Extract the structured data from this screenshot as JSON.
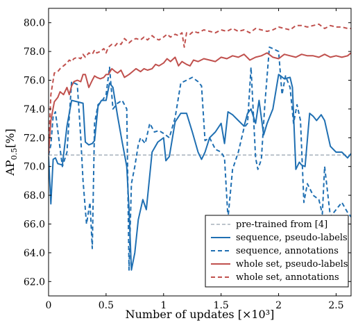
{
  "chart_data": {
    "type": "line",
    "title": "",
    "xlabel": "Number of updates [×10³]",
    "ylabel_main": "AP",
    "ylabel_sub": "0.5",
    "ylabel_unit": "[%]",
    "xlim": [
      0,
      2.63
    ],
    "ylim": [
      61.0,
      81.0
    ],
    "xticks": [
      0,
      0.5,
      1,
      1.5,
      2,
      2.5
    ],
    "xtick_labels": [
      "0",
      "0.5",
      "1",
      "1.5",
      "2",
      "2.5"
    ],
    "yticks": [
      62,
      64,
      66,
      68,
      70,
      72,
      74,
      76,
      78,
      80
    ],
    "ytick_labels": [
      "62.0",
      "64.0",
      "66.0",
      "68.0",
      "70.0",
      "72.0",
      "74.0",
      "76.0",
      "78.0",
      "80.0"
    ],
    "grid": false,
    "legend_position": "bottom-right",
    "series": [
      {
        "name": "pre-trained from [4]",
        "color": "#7a8a9a",
        "dash": "dashed",
        "x": [
          0,
          2.63
        ],
        "y": [
          70.8,
          70.8
        ]
      },
      {
        "name": "sequence, pseudo-labels",
        "color": "#1f6fb2",
        "dash": "solid",
        "x": [
          0,
          0.02,
          0.04,
          0.06,
          0.08,
          0.12,
          0.16,
          0.2,
          0.25,
          0.3,
          0.32,
          0.35,
          0.38,
          0.4,
          0.43,
          0.46,
          0.5,
          0.53,
          0.56,
          0.6,
          0.64,
          0.68,
          0.7,
          0.72,
          0.75,
          0.78,
          0.8,
          0.82,
          0.85,
          0.9,
          0.95,
          1.0,
          1.02,
          1.05,
          1.1,
          1.15,
          1.2,
          1.25,
          1.3,
          1.33,
          1.36,
          1.4,
          1.45,
          1.5,
          1.53,
          1.56,
          1.6,
          1.65,
          1.7,
          1.73,
          1.76,
          1.8,
          1.83,
          1.87,
          1.9,
          1.95,
          2.0,
          2.05,
          2.1,
          2.12,
          2.15,
          2.18,
          2.2,
          2.23,
          2.27,
          2.3,
          2.33,
          2.37,
          2.4,
          2.45,
          2.5,
          2.55,
          2.6,
          2.63
        ],
        "y": [
          70.7,
          67.4,
          70.5,
          70.6,
          70.2,
          70.1,
          72.8,
          74.6,
          74.5,
          74.4,
          71.7,
          71.5,
          71.6,
          71.8,
          74.2,
          74.6,
          74.6,
          75.8,
          75.5,
          73.5,
          71.7,
          70.0,
          67.0,
          62.8,
          64.0,
          66.3,
          67.0,
          67.7,
          67.0,
          71.0,
          71.7,
          72.0,
          70.4,
          70.7,
          73.1,
          73.7,
          73.7,
          72.4,
          71.0,
          70.5,
          71.0,
          72.0,
          72.4,
          73.0,
          71.6,
          73.8,
          73.6,
          73.2,
          72.8,
          73.7,
          74.0,
          73.0,
          74.6,
          72.2,
          73.0,
          74.0,
          76.4,
          76.1,
          76.2,
          75.5,
          69.8,
          70.3,
          70.1,
          70.0,
          73.7,
          73.5,
          73.2,
          73.6,
          73.2,
          71.4,
          71.0,
          71.0,
          70.6,
          70.9
        ]
      },
      {
        "name": "sequence, annotations",
        "color": "#1f6fb2",
        "dash": "dashed",
        "x": [
          0,
          0.02,
          0.04,
          0.06,
          0.08,
          0.12,
          0.16,
          0.2,
          0.25,
          0.28,
          0.3,
          0.33,
          0.36,
          0.38,
          0.4,
          0.43,
          0.46,
          0.5,
          0.53,
          0.56,
          0.6,
          0.64,
          0.68,
          0.7,
          0.72,
          0.75,
          0.78,
          0.8,
          0.84,
          0.88,
          0.92,
          0.96,
          1.0,
          1.05,
          1.1,
          1.15,
          1.2,
          1.25,
          1.3,
          1.33,
          1.36,
          1.4,
          1.45,
          1.5,
          1.53,
          1.56,
          1.6,
          1.65,
          1.7,
          1.73,
          1.76,
          1.8,
          1.82,
          1.85,
          1.88,
          1.92,
          1.95,
          2.0,
          2.03,
          2.06,
          2.1,
          2.13,
          2.16,
          2.19,
          2.22,
          2.25,
          2.3,
          2.35,
          2.38,
          2.4,
          2.45,
          2.5,
          2.55,
          2.6,
          2.63
        ],
        "y": [
          70.8,
          71.5,
          73.5,
          73.8,
          72.5,
          70.0,
          71.0,
          75.9,
          75.7,
          72.0,
          69.0,
          66.0,
          67.5,
          64.3,
          73.0,
          74.3,
          74.5,
          75.0,
          76.9,
          74.0,
          74.4,
          74.6,
          74.0,
          62.8,
          68.8,
          70.0,
          71.5,
          72.0,
          71.6,
          73.0,
          72.4,
          72.5,
          72.3,
          72.0,
          73.4,
          75.8,
          76.0,
          76.2,
          75.9,
          75.6,
          71.8,
          72.0,
          71.2,
          71.0,
          70.6,
          66.4,
          69.8,
          71.0,
          72.7,
          73.0,
          76.9,
          70.6,
          69.8,
          70.5,
          74.3,
          78.3,
          78.2,
          78.0,
          75.0,
          76.3,
          75.5,
          73.0,
          74.3,
          73.2,
          67.5,
          68.8,
          68.0,
          67.7,
          66.7,
          70.0,
          66.5,
          67.0,
          67.5,
          66.8,
          66.5
        ]
      },
      {
        "name": "whole set, pseudo-labels",
        "color": "#c0504d",
        "dash": "solid",
        "x": [
          0,
          0.02,
          0.05,
          0.08,
          0.1,
          0.13,
          0.16,
          0.18,
          0.2,
          0.22,
          0.25,
          0.28,
          0.3,
          0.32,
          0.35,
          0.38,
          0.4,
          0.42,
          0.45,
          0.48,
          0.5,
          0.52,
          0.55,
          0.58,
          0.6,
          0.63,
          0.66,
          0.7,
          0.73,
          0.76,
          0.8,
          0.83,
          0.86,
          0.9,
          0.93,
          0.96,
          1.0,
          1.03,
          1.06,
          1.1,
          1.13,
          1.16,
          1.2,
          1.23,
          1.26,
          1.3,
          1.35,
          1.4,
          1.45,
          1.5,
          1.55,
          1.6,
          1.65,
          1.7,
          1.75,
          1.8,
          1.85,
          1.9,
          1.95,
          2.0,
          2.05,
          2.1,
          2.15,
          2.2,
          2.25,
          2.3,
          2.35,
          2.4,
          2.45,
          2.5,
          2.55,
          2.6,
          2.63
        ],
        "y": [
          70.9,
          73.2,
          74.5,
          74.8,
          75.2,
          75.0,
          75.5,
          75.0,
          75.6,
          75.9,
          76.0,
          75.9,
          76.4,
          76.4,
          75.5,
          76.0,
          76.3,
          76.2,
          76.1,
          76.2,
          76.4,
          76.4,
          76.8,
          76.6,
          76.5,
          76.7,
          76.2,
          76.4,
          76.6,
          76.8,
          76.6,
          76.8,
          76.7,
          76.8,
          77.1,
          77.0,
          77.2,
          77.5,
          77.3,
          77.6,
          77.0,
          77.3,
          77.1,
          77.0,
          77.4,
          77.3,
          77.5,
          77.4,
          77.3,
          77.6,
          77.5,
          77.7,
          77.6,
          77.8,
          77.4,
          77.6,
          77.7,
          77.9,
          77.6,
          77.5,
          77.8,
          77.7,
          77.6,
          77.8,
          77.7,
          77.7,
          77.6,
          77.8,
          77.6,
          77.7,
          77.6,
          77.7,
          77.9
        ]
      },
      {
        "name": "whole set, annotations",
        "color": "#c0504d",
        "dash": "dashed",
        "x": [
          0,
          0.02,
          0.05,
          0.08,
          0.1,
          0.13,
          0.16,
          0.18,
          0.2,
          0.22,
          0.25,
          0.28,
          0.3,
          0.32,
          0.35,
          0.38,
          0.4,
          0.42,
          0.45,
          0.48,
          0.5,
          0.52,
          0.55,
          0.58,
          0.6,
          0.63,
          0.66,
          0.7,
          0.73,
          0.76,
          0.8,
          0.83,
          0.86,
          0.9,
          0.93,
          0.96,
          1.0,
          1.03,
          1.06,
          1.1,
          1.13,
          1.16,
          1.18,
          1.2,
          1.23,
          1.26,
          1.3,
          1.35,
          1.4,
          1.45,
          1.5,
          1.55,
          1.6,
          1.65,
          1.7,
          1.75,
          1.8,
          1.85,
          1.9,
          1.95,
          2.0,
          2.05,
          2.1,
          2.15,
          2.2,
          2.25,
          2.3,
          2.35,
          2.4,
          2.45,
          2.5,
          2.55,
          2.6,
          2.63
        ],
        "y": [
          71.0,
          75.0,
          76.5,
          76.6,
          76.8,
          77.0,
          77.2,
          77.4,
          77.3,
          77.5,
          77.6,
          77.5,
          77.8,
          77.6,
          77.9,
          77.8,
          78.1,
          77.9,
          78.0,
          78.2,
          77.9,
          78.3,
          78.5,
          78.4,
          78.6,
          78.5,
          78.9,
          78.6,
          78.8,
          78.9,
          78.8,
          79.0,
          78.8,
          79.1,
          78.9,
          78.8,
          79.0,
          79.2,
          79.0,
          79.2,
          79.1,
          79.3,
          78.3,
          79.3,
          79.2,
          79.4,
          79.3,
          79.5,
          79.4,
          79.3,
          79.5,
          79.4,
          79.6,
          79.4,
          79.5,
          79.3,
          79.6,
          79.5,
          79.4,
          79.5,
          79.7,
          79.6,
          79.5,
          79.8,
          79.8,
          79.7,
          79.8,
          79.9,
          79.6,
          79.8,
          79.7,
          79.7,
          79.6,
          79.6
        ]
      }
    ]
  }
}
